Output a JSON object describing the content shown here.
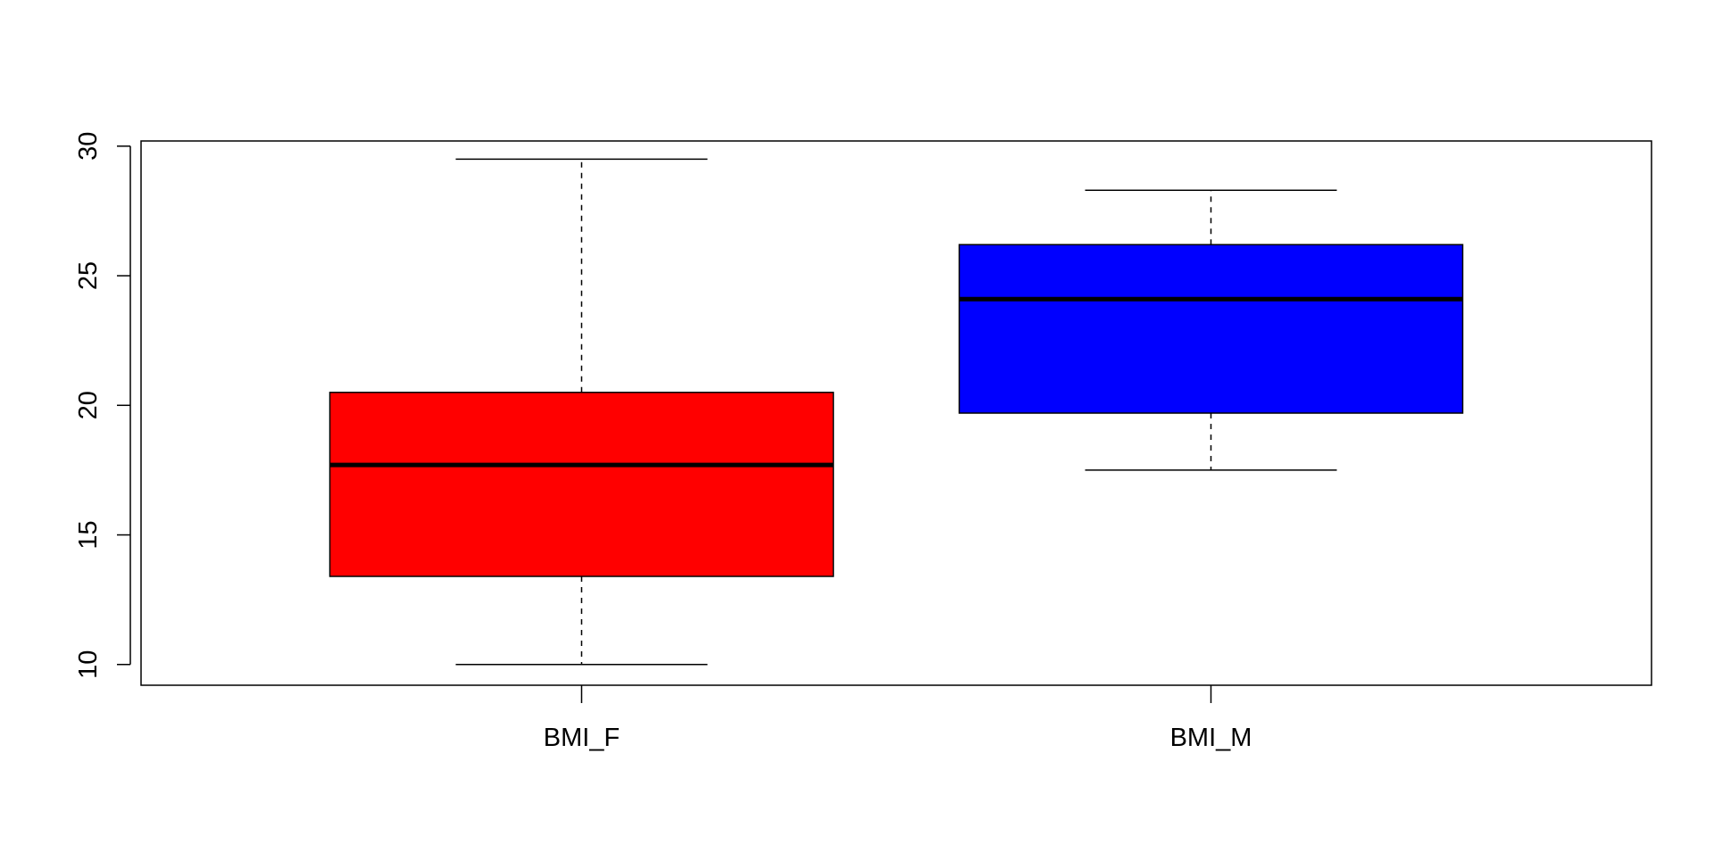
{
  "chart_data": {
    "type": "boxplot",
    "title": "",
    "xlabel": "",
    "ylabel": "",
    "ylim": [
      9.2,
      30.2
    ],
    "yticks": [
      10,
      15,
      20,
      25,
      30
    ],
    "categories": [
      "BMI_F",
      "BMI_M"
    ],
    "boxes": [
      {
        "category": "BMI_F",
        "min": 10.0,
        "q1": 13.4,
        "median": 17.7,
        "q3": 20.5,
        "max": 29.5,
        "color": "#ff0000"
      },
      {
        "category": "BMI_M",
        "min": 17.5,
        "q1": 19.7,
        "median": 24.1,
        "q3": 26.2,
        "max": 28.3,
        "color": "#0000ff"
      }
    ],
    "grid": false,
    "legend": "none"
  }
}
